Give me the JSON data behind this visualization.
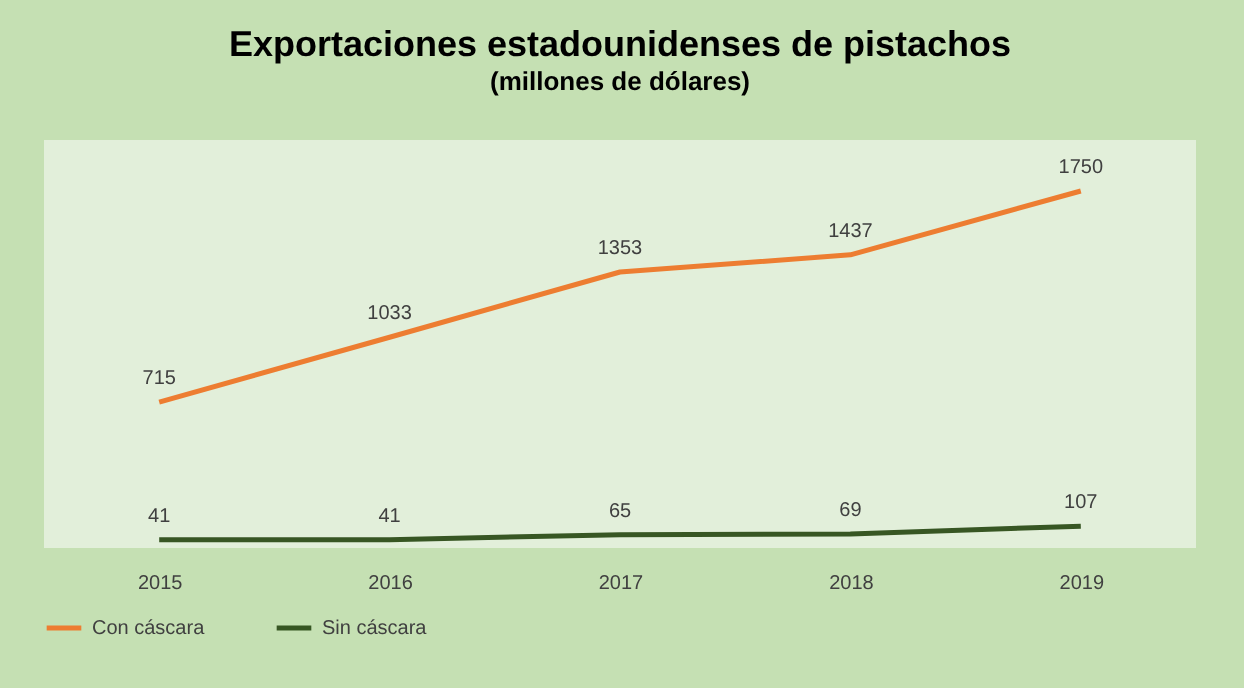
{
  "chart_data": {
    "type": "line",
    "title": "Exportaciones estadounidenses de pistachos",
    "subtitle": "(millones de dólares)",
    "categories": [
      "2015",
      "2016",
      "2017",
      "2018",
      "2019"
    ],
    "series": [
      {
        "name": "Con cáscara",
        "color": "#ed7d31",
        "values": [
          715,
          1033,
          1353,
          1437,
          1750
        ]
      },
      {
        "name": "Sin cáscara",
        "color": "#375623",
        "values": [
          41,
          41,
          65,
          69,
          107
        ]
      }
    ],
    "ylim": [
      0,
      2000
    ],
    "tick_labels": "x",
    "data_labels": true,
    "legend": "bottom left",
    "marker": "none",
    "line_style": "solid"
  }
}
